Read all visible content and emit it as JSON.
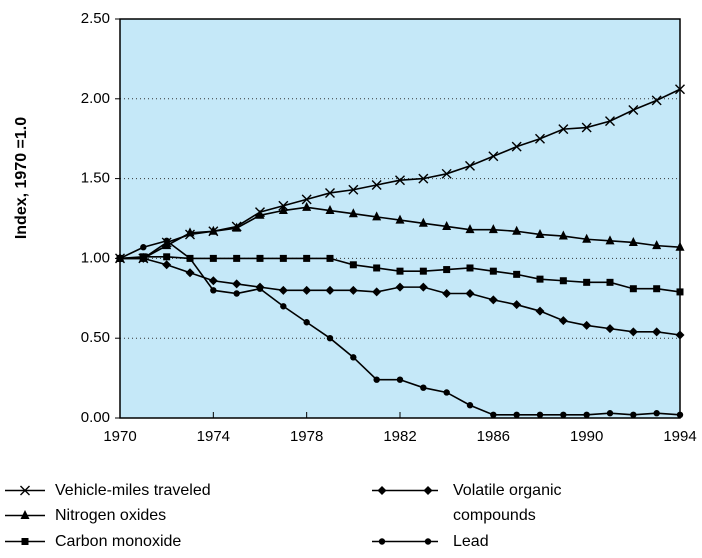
{
  "chart_data": {
    "type": "line",
    "y_label": "Index, 1970 =1.0",
    "x": [
      1970,
      1971,
      1972,
      1973,
      1974,
      1975,
      1976,
      1977,
      1978,
      1979,
      1980,
      1981,
      1982,
      1983,
      1984,
      1985,
      1986,
      1987,
      1988,
      1989,
      1990,
      1991,
      1992,
      1993,
      1994
    ],
    "xlim": [
      1970,
      1994
    ],
    "xticks": [
      1970,
      1974,
      1978,
      1982,
      1986,
      1990,
      1994
    ],
    "ylim": [
      0,
      2.5
    ],
    "yticks": [
      {
        "value": 0,
        "label": "0.00"
      },
      {
        "value": 0.5,
        "label": "0.50"
      },
      {
        "value": 1,
        "label": "1.00"
      },
      {
        "value": 1.5,
        "label": "1.50"
      },
      {
        "value": 2,
        "label": "2.00"
      },
      {
        "value": 2.5,
        "label": "2.50"
      }
    ],
    "grid": true,
    "plot_background": "#c5e8f8",
    "series": [
      {
        "name": "Vehicle-miles traveled",
        "color": "#000000",
        "marker": "x",
        "values": [
          1.0,
          1.0,
          1.1,
          1.15,
          1.17,
          1.2,
          1.29,
          1.33,
          1.37,
          1.41,
          1.43,
          1.46,
          1.49,
          1.5,
          1.53,
          1.58,
          1.64,
          1.7,
          1.75,
          1.81,
          1.82,
          1.86,
          1.93,
          1.99,
          2.06
        ]
      },
      {
        "name": "Nitrogen oxides",
        "color": "#000000",
        "marker": "triangle",
        "values": [
          1.0,
          1.0,
          1.08,
          1.16,
          1.17,
          1.19,
          1.27,
          1.3,
          1.32,
          1.3,
          1.28,
          1.26,
          1.24,
          1.22,
          1.2,
          1.18,
          1.18,
          1.17,
          1.15,
          1.14,
          1.12,
          1.11,
          1.1,
          1.08,
          1.07
        ]
      },
      {
        "name": "Carbon monoxide",
        "color": "#000000",
        "marker": "square",
        "values": [
          1.0,
          1.01,
          1.01,
          1.0,
          1.0,
          1.0,
          1.0,
          1.0,
          1.0,
          1.0,
          0.96,
          0.94,
          0.92,
          0.92,
          0.93,
          0.94,
          0.92,
          0.9,
          0.87,
          0.86,
          0.85,
          0.85,
          0.81,
          0.81,
          0.79
        ]
      },
      {
        "name": "Volatile organic compounds",
        "color": "#000000",
        "marker": "diamond",
        "values": [
          1.0,
          1.0,
          0.96,
          0.91,
          0.86,
          0.84,
          0.82,
          0.8,
          0.8,
          0.8,
          0.8,
          0.79,
          0.82,
          0.82,
          0.78,
          0.78,
          0.74,
          0.71,
          0.67,
          0.61,
          0.58,
          0.56,
          0.54,
          0.54,
          0.52
        ]
      },
      {
        "name": "Lead",
        "color": "#000000",
        "marker": "circle",
        "values": [
          1.0,
          1.07,
          1.11,
          1.0,
          0.8,
          0.78,
          0.81,
          0.7,
          0.6,
          0.5,
          0.38,
          0.24,
          0.24,
          0.19,
          0.16,
          0.08,
          0.02,
          0.02,
          0.02,
          0.02,
          0.02,
          0.03,
          0.02,
          0.03,
          0.02
        ]
      }
    ]
  }
}
